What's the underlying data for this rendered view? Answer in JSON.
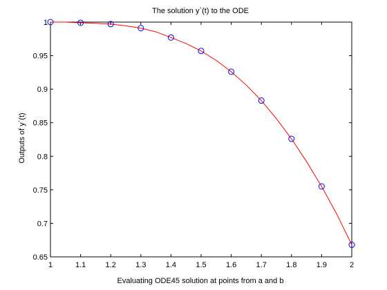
{
  "chart_data": {
    "type": "line",
    "title": "The solution y`(t) to the ODE",
    "xlabel": "Evaluating ODE45 solution at points from a and b",
    "ylabel": "Outputs of y`(t)",
    "xlim": [
      1,
      2
    ],
    "ylim": [
      0.65,
      1
    ],
    "grid": false,
    "legend": "none",
    "xticks": [
      1,
      1.1,
      1.2,
      1.3,
      1.4,
      1.5,
      1.6,
      1.7,
      1.8,
      1.9,
      2
    ],
    "xtick_labels": [
      "1",
      "1.1",
      "1.2",
      "1.3",
      "1.4",
      "1.5",
      "1.6",
      "1.7",
      "1.8",
      "1.9",
      "2"
    ],
    "yticks": [
      0.65,
      0.7,
      0.75,
      0.8,
      0.85,
      0.9,
      0.95,
      1
    ],
    "ytick_labels": [
      "0.65",
      "0.7",
      "0.75",
      "0.8",
      "0.85",
      "0.9",
      "0.95",
      "1"
    ],
    "series": [
      {
        "style": "solid-line",
        "color": "#ff0000",
        "x": [
          1,
          1.05,
          1.1,
          1.15,
          1.2,
          1.25,
          1.3,
          1.35,
          1.4,
          1.45,
          1.5,
          1.55,
          1.6,
          1.65,
          1.7,
          1.75,
          1.8,
          1.85,
          1.9,
          1.95,
          2
        ],
        "y": [
          1.0,
          1.0,
          0.999,
          0.9982,
          0.997,
          0.9945,
          0.991,
          0.9855,
          0.977,
          0.968,
          0.957,
          0.943,
          0.926,
          0.906,
          0.883,
          0.856,
          0.826,
          0.792,
          0.755,
          0.714,
          0.668
        ]
      },
      {
        "style": "circle-markers",
        "color": "#0000ff",
        "x": [
          1,
          1.1,
          1.2,
          1.3,
          1.4,
          1.5,
          1.6,
          1.7,
          1.8,
          1.9,
          2
        ],
        "y": [
          1.0,
          0.999,
          0.997,
          0.991,
          0.977,
          0.957,
          0.926,
          0.883,
          0.826,
          0.755,
          0.668
        ]
      }
    ]
  }
}
